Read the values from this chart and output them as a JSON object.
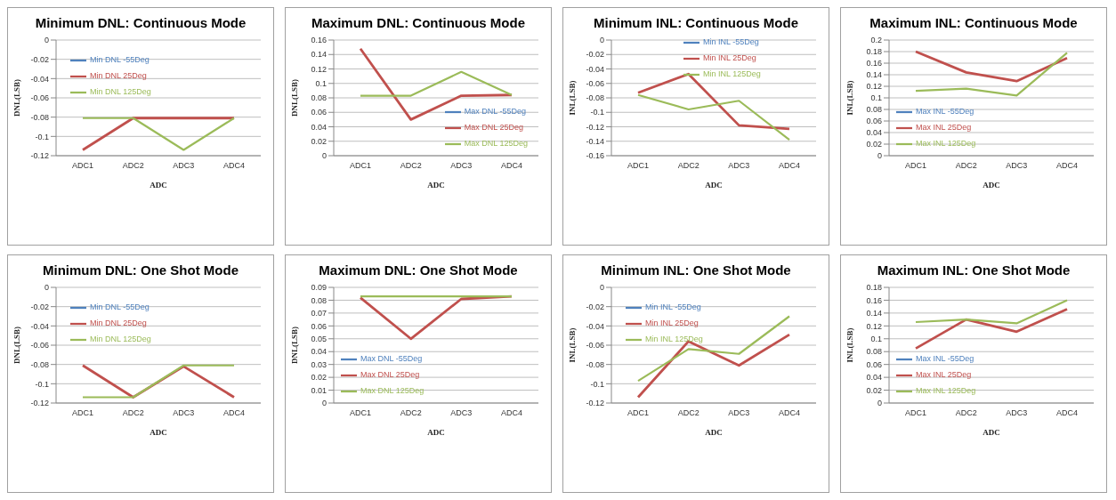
{
  "chart_data": [
    {
      "type": "line",
      "title": "Minimum DNL: Continuous Mode",
      "xlabel": "ADC",
      "ylabel": "DNL(LSB)",
      "categories": [
        "ADC1",
        "ADC2",
        "ADC3",
        "ADC4"
      ],
      "ylim": [
        -0.12,
        0
      ],
      "yticks": [
        -0.12,
        -0.1,
        -0.08,
        -0.06,
        -0.04,
        -0.02,
        0
      ],
      "grid": "y",
      "legend": "top left",
      "marker": "none",
      "series": [
        {
          "name": "Min DNL -55Deg",
          "color": "#4f81bd",
          "values": [
            null,
            null,
            null,
            null
          ]
        },
        {
          "name": "Min DNL 25Deg",
          "color": "#c0504d",
          "values": [
            -0.114,
            -0.081,
            -0.081,
            -0.081
          ]
        },
        {
          "name": "Min DNL 125Deg",
          "color": "#9bbb59",
          "values": [
            -0.081,
            -0.081,
            -0.114,
            -0.081
          ]
        }
      ]
    },
    {
      "type": "line",
      "title": "Maximum DNL: Continuous Mode",
      "xlabel": "ADC",
      "ylabel": "DNL(LSB)",
      "categories": [
        "ADC1",
        "ADC2",
        "ADC3",
        "ADC4"
      ],
      "ylim": [
        0,
        0.16
      ],
      "yticks": [
        0,
        0.02,
        0.04,
        0.06,
        0.08,
        0.1,
        0.12,
        0.14,
        0.16
      ],
      "grid": "y",
      "legend": "bottom right",
      "marker": "none",
      "series": [
        {
          "name": "Max DNL -55Deg",
          "color": "#4f81bd",
          "values": [
            null,
            null,
            null,
            null
          ]
        },
        {
          "name": "Max DNL 25Deg",
          "color": "#c0504d",
          "values": [
            0.148,
            0.05,
            0.083,
            0.084
          ]
        },
        {
          "name": "Max DNL 125Deg",
          "color": "#9bbb59",
          "values": [
            0.083,
            0.083,
            0.116,
            0.084
          ]
        }
      ]
    },
    {
      "type": "line",
      "title": "Minimum INL: Continuous Mode",
      "xlabel": "ADC",
      "ylabel": "INL(LSB)",
      "categories": [
        "ADC1",
        "ADC2",
        "ADC3",
        "ADC4"
      ],
      "ylim": [
        -0.16,
        0
      ],
      "yticks": [
        -0.16,
        -0.14,
        -0.12,
        -0.1,
        -0.08,
        -0.06,
        -0.04,
        -0.02,
        0
      ],
      "grid": "y",
      "legend": "top",
      "marker": "none",
      "series": [
        {
          "name": "Min INL -55Deg",
          "color": "#4f81bd",
          "values": [
            null,
            null,
            null,
            null
          ]
        },
        {
          "name": "Min INL 25Deg",
          "color": "#c0504d",
          "values": [
            -0.073,
            -0.047,
            -0.118,
            -0.123
          ]
        },
        {
          "name": "Min INL 125Deg",
          "color": "#9bbb59",
          "values": [
            -0.076,
            -0.096,
            -0.084,
            -0.138
          ]
        }
      ]
    },
    {
      "type": "line",
      "title": "Maximum INL: Continuous Mode",
      "xlabel": "ADC",
      "ylabel": "INL(LSB)",
      "categories": [
        "ADC1",
        "ADC2",
        "ADC3",
        "ADC4"
      ],
      "ylim": [
        0,
        0.2
      ],
      "yticks": [
        0,
        0.02,
        0.04,
        0.06,
        0.08,
        0.1,
        0.12,
        0.14,
        0.16,
        0.18,
        0.2
      ],
      "grid": "y",
      "legend": "bottom left",
      "marker": "none",
      "series": [
        {
          "name": "Max INL -55Deg",
          "color": "#4f81bd",
          "values": [
            null,
            null,
            null,
            null
          ]
        },
        {
          "name": "Max INL 25Deg",
          "color": "#c0504d",
          "values": [
            0.18,
            0.144,
            0.129,
            0.169
          ]
        },
        {
          "name": "Max INL 125Deg",
          "color": "#9bbb59",
          "values": [
            0.112,
            0.116,
            0.104,
            0.178
          ]
        }
      ]
    },
    {
      "type": "line",
      "title": "Minimum DNL: One Shot Mode",
      "xlabel": "ADC",
      "ylabel": "DNL(LSB)",
      "categories": [
        "ADC1",
        "ADC2",
        "ADC3",
        "ADC4"
      ],
      "ylim": [
        -0.12,
        0
      ],
      "yticks": [
        -0.12,
        -0.1,
        -0.08,
        -0.06,
        -0.04,
        -0.02,
        0
      ],
      "grid": "y",
      "legend": "top left",
      "marker": "none",
      "series": [
        {
          "name": "Min DNL -55Deg",
          "color": "#4f81bd",
          "values": [
            null,
            null,
            null,
            null
          ]
        },
        {
          "name": "Min DNL 25Deg",
          "color": "#c0504d",
          "values": [
            -0.081,
            -0.114,
            -0.082,
            -0.114
          ]
        },
        {
          "name": "Min DNL 125Deg",
          "color": "#9bbb59",
          "values": [
            -0.114,
            -0.114,
            -0.081,
            -0.081
          ]
        }
      ]
    },
    {
      "type": "line",
      "title": "Maximum DNL: One Shot Mode",
      "xlabel": "ADC",
      "ylabel": "DNL(LSB)",
      "categories": [
        "ADC1",
        "ADC2",
        "ADC3",
        "ADC4"
      ],
      "ylim": [
        0,
        0.09
      ],
      "yticks": [
        0,
        0.01,
        0.02,
        0.03,
        0.04,
        0.05,
        0.06,
        0.07,
        0.08,
        0.09
      ],
      "grid": "y",
      "legend": "bottom left",
      "marker": "none",
      "series": [
        {
          "name": "Max DNL -55Deg",
          "color": "#4f81bd",
          "values": [
            null,
            null,
            null,
            null
          ]
        },
        {
          "name": "Max DNL 25Deg",
          "color": "#c0504d",
          "values": [
            0.082,
            0.05,
            0.081,
            0.083
          ]
        },
        {
          "name": "Max DNL 125Deg",
          "color": "#9bbb59",
          "values": [
            0.083,
            0.083,
            0.083,
            0.083
          ]
        }
      ]
    },
    {
      "type": "line",
      "title": "Minimum INL: One Shot Mode",
      "xlabel": "ADC",
      "ylabel": "INL(LSB)",
      "categories": [
        "ADC1",
        "ADC2",
        "ADC3",
        "ADC4"
      ],
      "ylim": [
        -0.12,
        0
      ],
      "yticks": [
        -0.12,
        -0.1,
        -0.08,
        -0.06,
        -0.04,
        -0.02,
        0
      ],
      "grid": "y",
      "legend": "top left",
      "marker": "none",
      "series": [
        {
          "name": "Min INL -55Deg",
          "color": "#4f81bd",
          "values": [
            null,
            null,
            null,
            null
          ]
        },
        {
          "name": "Min INL 25Deg",
          "color": "#c0504d",
          "values": [
            -0.114,
            -0.056,
            -0.081,
            -0.049
          ]
        },
        {
          "name": "Min INL 125Deg",
          "color": "#9bbb59",
          "values": [
            -0.097,
            -0.064,
            -0.069,
            -0.03
          ]
        }
      ]
    },
    {
      "type": "line",
      "title": "Maximum INL: One Shot Mode",
      "xlabel": "ADC",
      "ylabel": "INL(LSB)",
      "categories": [
        "ADC1",
        "ADC2",
        "ADC3",
        "ADC4"
      ],
      "ylim": [
        0,
        0.18
      ],
      "yticks": [
        0,
        0.02,
        0.04,
        0.06,
        0.08,
        0.1,
        0.12,
        0.14,
        0.16,
        0.18
      ],
      "grid": "y",
      "legend": "bottom left",
      "marker": "none",
      "series": [
        {
          "name": "Max INL -55Deg",
          "color": "#4f81bd",
          "values": [
            null,
            null,
            null,
            null
          ]
        },
        {
          "name": "Max INL 25Deg",
          "color": "#c0504d",
          "values": [
            0.085,
            0.13,
            0.111,
            0.146
          ]
        },
        {
          "name": "Max INL 125Deg",
          "color": "#9bbb59",
          "values": [
            0.126,
            0.13,
            0.124,
            0.16
          ]
        }
      ]
    }
  ]
}
